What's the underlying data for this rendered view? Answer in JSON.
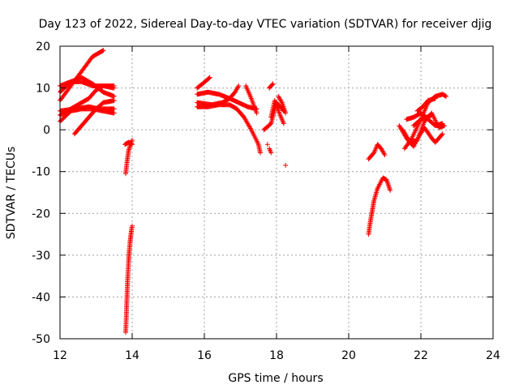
{
  "chart_data": {
    "type": "scatter",
    "title": "Day 123 of 2022, Sidereal Day-to-day VTEC variation (SDTVAR) for receiver djig",
    "xlabel": "GPS time / hours",
    "ylabel": "SDTVAR / TECUs",
    "xlim": [
      12,
      24
    ],
    "ylim": [
      -50,
      20
    ],
    "xticks": [
      12,
      14,
      16,
      18,
      20,
      22,
      24
    ],
    "yticks": [
      -50,
      -40,
      -30,
      -20,
      -10,
      0,
      10,
      20
    ],
    "grid": true,
    "marker": "+",
    "color": "#ff0000",
    "tracks": [
      [
        [
          12.0,
          7.0
        ],
        [
          12.3,
          10.5
        ],
        [
          12.6,
          14.0
        ],
        [
          12.9,
          17.5
        ],
        [
          13.2,
          19.0
        ]
      ],
      [
        [
          12.0,
          10.5
        ],
        [
          12.3,
          11.5
        ],
        [
          12.6,
          11.5
        ],
        [
          12.9,
          10.5
        ],
        [
          13.2,
          10.5
        ],
        [
          13.5,
          10.0
        ]
      ],
      [
        [
          12.0,
          3.5
        ],
        [
          12.2,
          4.5
        ],
        [
          12.4,
          5.5
        ],
        [
          12.6,
          6.5
        ],
        [
          12.8,
          7.5
        ],
        [
          13.0,
          9.5
        ],
        [
          13.2,
          10.5
        ],
        [
          13.5,
          10.5
        ]
      ],
      [
        [
          12.0,
          2.0
        ],
        [
          12.3,
          4.5
        ],
        [
          12.6,
          5.0
        ],
        [
          12.9,
          5.0
        ],
        [
          13.2,
          4.5
        ],
        [
          13.5,
          4.0
        ]
      ],
      [
        [
          12.0,
          9.0
        ],
        [
          12.3,
          11.5
        ],
        [
          12.6,
          12.5
        ],
        [
          12.9,
          11.0
        ],
        [
          13.2,
          9.0
        ],
        [
          13.5,
          8.0
        ]
      ],
      [
        [
          12.4,
          -1.0
        ],
        [
          12.6,
          1.0
        ],
        [
          12.8,
          3.0
        ],
        [
          13.0,
          5.0
        ],
        [
          13.2,
          6.5
        ],
        [
          13.5,
          7.0
        ]
      ],
      [
        [
          12.0,
          4.5
        ],
        [
          12.4,
          5.0
        ],
        [
          12.8,
          5.5
        ],
        [
          13.1,
          5.0
        ],
        [
          13.5,
          5.0
        ]
      ],
      [
        [
          13.8,
          -3.5
        ],
        [
          13.9,
          -3.0
        ],
        [
          14.0,
          -3.5
        ]
      ],
      [
        [
          13.82,
          -10.5
        ],
        [
          13.86,
          -7.5
        ],
        [
          13.9,
          -5.0
        ],
        [
          13.95,
          -3.5
        ],
        [
          14.0,
          -2.5
        ]
      ],
      [
        [
          13.82,
          -48.5
        ],
        [
          13.84,
          -44.0
        ],
        [
          13.86,
          -39.0
        ],
        [
          13.88,
          -35.0
        ],
        [
          13.9,
          -31.5
        ],
        [
          13.92,
          -29.0
        ],
        [
          13.94,
          -27.0
        ],
        [
          13.96,
          -25.5
        ],
        [
          13.98,
          -24.0
        ],
        [
          14.0,
          -23.0
        ]
      ],
      [
        [
          15.8,
          10.0
        ],
        [
          15.95,
          11.0
        ],
        [
          16.15,
          12.5
        ]
      ],
      [
        [
          15.8,
          8.5
        ],
        [
          16.1,
          9.0
        ],
        [
          16.4,
          8.5
        ],
        [
          16.7,
          7.5
        ],
        [
          16.95,
          6.5
        ],
        [
          17.2,
          5.5
        ],
        [
          17.45,
          5.0
        ]
      ],
      [
        [
          15.8,
          6.5
        ],
        [
          16.2,
          6.0
        ],
        [
          16.5,
          6.5
        ],
        [
          16.7,
          7.5
        ],
        [
          16.85,
          9.0
        ],
        [
          16.95,
          10.5
        ]
      ],
      [
        [
          15.8,
          5.5
        ],
        [
          16.1,
          5.5
        ],
        [
          16.4,
          6.0
        ],
        [
          16.7,
          6.0
        ],
        [
          16.9,
          5.0
        ],
        [
          17.1,
          3.0
        ],
        [
          17.3,
          0.0
        ],
        [
          17.5,
          -3.5
        ],
        [
          17.55,
          -5.5
        ]
      ],
      [
        [
          17.15,
          10.5
        ],
        [
          17.3,
          7.5
        ],
        [
          17.45,
          4.0
        ]
      ],
      [
        [
          17.8,
          -4.5
        ],
        [
          17.85,
          -5.5
        ]
      ],
      [
        [
          17.8,
          10.0
        ],
        [
          17.9,
          11.0
        ]
      ],
      [
        [
          17.65,
          0.0
        ],
        [
          17.85,
          1.5
        ],
        [
          18.0,
          6.5
        ],
        [
          18.2,
          4.5
        ]
      ],
      [
        [
          17.85,
          3.0
        ],
        [
          17.95,
          7.0
        ],
        [
          18.1,
          3.5
        ],
        [
          18.2,
          1.5
        ]
      ],
      [
        [
          18.05,
          8.0
        ],
        [
          18.15,
          6.5
        ],
        [
          18.25,
          4.0
        ]
      ],
      [
        [
          20.55,
          -25.0
        ],
        [
          20.6,
          -22.0
        ],
        [
          20.65,
          -19.5
        ],
        [
          20.7,
          -17.0
        ],
        [
          20.8,
          -14.0
        ],
        [
          20.95,
          -11.5
        ],
        [
          21.05,
          -12.0
        ],
        [
          21.15,
          -14.5
        ]
      ],
      [
        [
          20.55,
          -7.0
        ],
        [
          20.7,
          -5.5
        ],
        [
          20.8,
          -3.5
        ],
        [
          20.9,
          -4.5
        ],
        [
          21.0,
          -6.0
        ]
      ],
      [
        [
          21.4,
          1.0
        ],
        [
          21.6,
          -2.0
        ],
        [
          21.8,
          -4.0
        ],
        [
          21.95,
          -1.5
        ],
        [
          22.1,
          0.5
        ],
        [
          22.3,
          -2.0
        ],
        [
          22.4,
          -3.0
        ],
        [
          22.6,
          -1.0
        ]
      ],
      [
        [
          21.6,
          2.5
        ],
        [
          21.8,
          3.0
        ],
        [
          22.0,
          4.0
        ],
        [
          22.2,
          2.5
        ],
        [
          22.4,
          1.0
        ],
        [
          22.6,
          1.5
        ]
      ],
      [
        [
          21.5,
          0.0
        ],
        [
          21.7,
          -3.0
        ],
        [
          21.9,
          -2.5
        ],
        [
          22.1,
          2.0
        ],
        [
          22.3,
          4.0
        ],
        [
          22.5,
          0.5
        ],
        [
          22.65,
          1.0
        ]
      ],
      [
        [
          21.55,
          -4.5
        ],
        [
          21.75,
          -2.0
        ],
        [
          22.0,
          2.5
        ],
        [
          22.2,
          6.5
        ],
        [
          22.4,
          8.0
        ],
        [
          22.6,
          8.5
        ],
        [
          22.7,
          8.0
        ]
      ],
      [
        [
          21.8,
          1.0
        ],
        [
          22.0,
          2.5
        ],
        [
          22.3,
          3.5
        ]
      ],
      [
        [
          21.9,
          4.5
        ],
        [
          22.05,
          5.5
        ],
        [
          22.2,
          7.0
        ],
        [
          22.4,
          7.5
        ]
      ],
      [
        [
          18.25,
          -8.5
        ]
      ],
      [
        [
          17.75,
          -3.5
        ]
      ]
    ]
  }
}
